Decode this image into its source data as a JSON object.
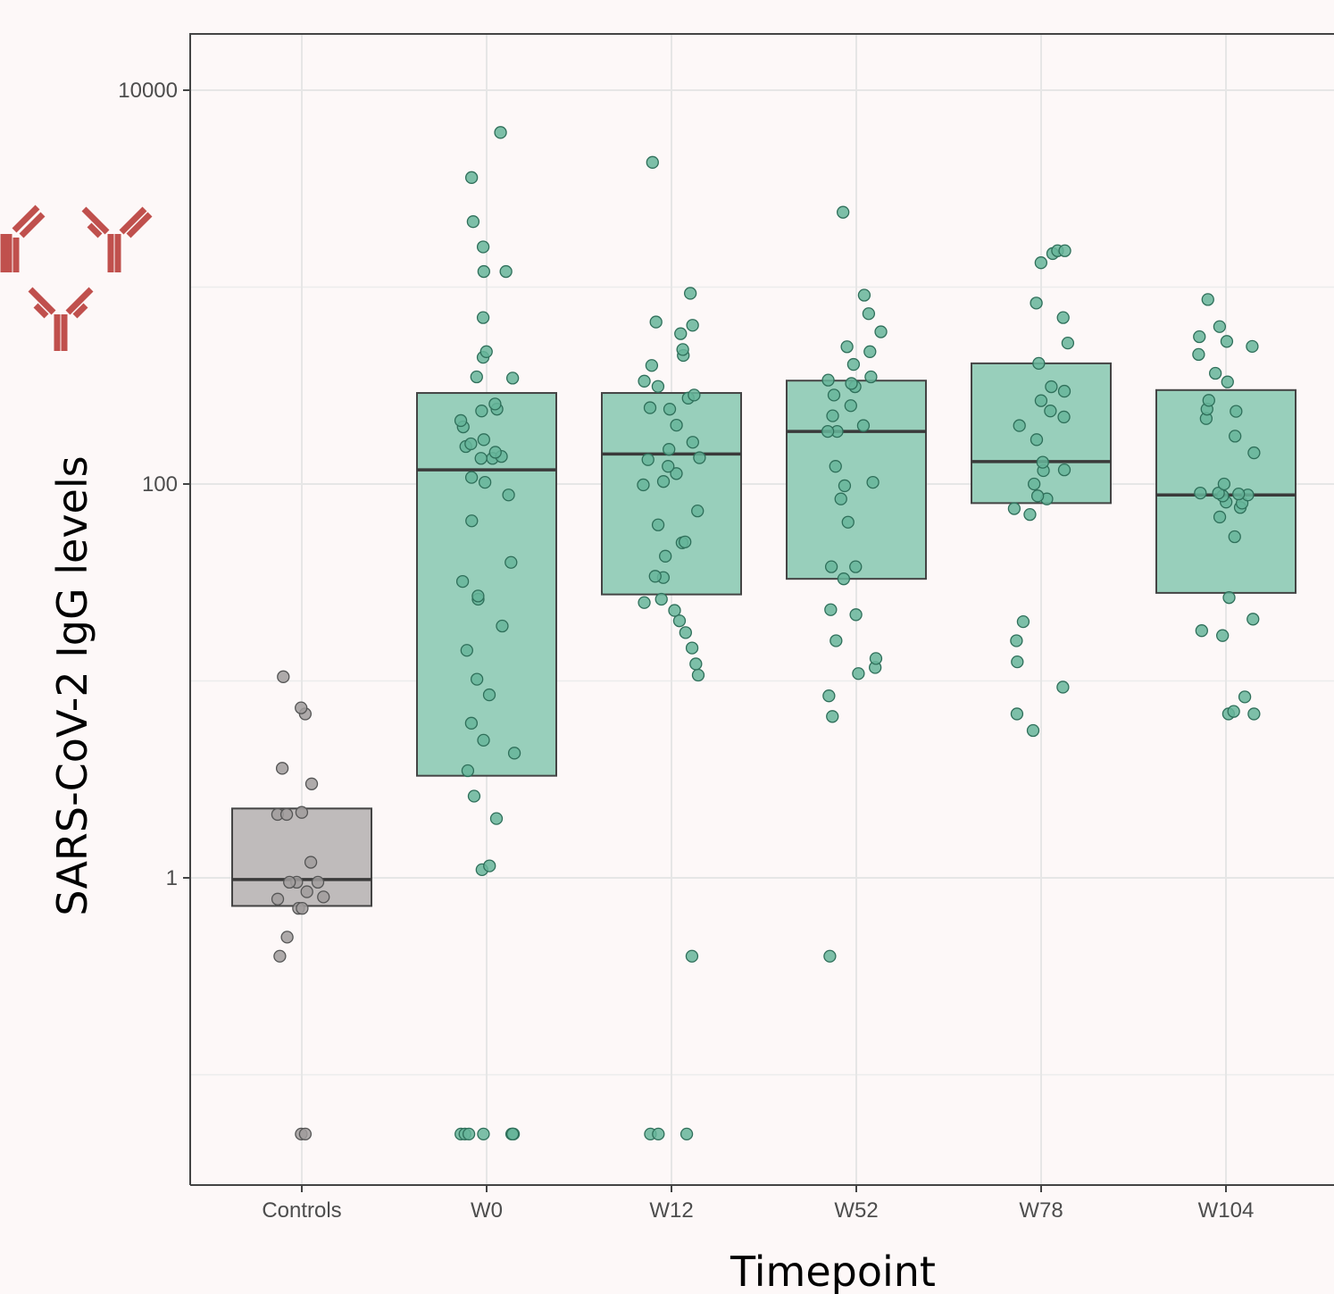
{
  "chart_data": {
    "type": "box",
    "xlabel": "Timepoint",
    "ylabel": "SARS-CoV-2 IgG levels",
    "yscale": "log10",
    "ylim": [
      0.02,
      16000
    ],
    "yticks": [
      1,
      100,
      10000
    ],
    "ytick_labels": [
      "1",
      "100",
      "10000"
    ],
    "yminor": [
      0.1,
      10,
      1000
    ],
    "grid": true,
    "legend": "none",
    "categories": [
      "Controls",
      "W0",
      "W12",
      "W52",
      "W78",
      "W104"
    ],
    "colors": {
      "Controls": "#bfbbbb",
      "default": "#98cfbb",
      "point_controls": "#a09c9c",
      "point": "#66b59a"
    },
    "boxes": [
      {
        "category": "Controls",
        "q1": 0.72,
        "median": 0.98,
        "q3": 2.25
      },
      {
        "category": "W0",
        "q1": 3.3,
        "median": 118,
        "q3": 290
      },
      {
        "category": "W12",
        "q1": 27.5,
        "median": 142,
        "q3": 290
      },
      {
        "category": "W52",
        "q1": 33,
        "median": 185,
        "q3": 335
      },
      {
        "category": "W78",
        "q1": 80,
        "median": 130,
        "q3": 410
      },
      {
        "category": "W104",
        "q1": 28,
        "median": 88,
        "q3": 300
      }
    ],
    "points": [
      {
        "category": "Controls",
        "values": [
          0.05,
          0.05,
          0.4,
          0.5,
          0.7,
          0.7,
          0.78,
          0.8,
          0.85,
          0.95,
          0.95,
          0.95,
          1.2,
          2.1,
          2.15,
          2.1,
          3.0,
          3.6,
          6.8,
          7.3,
          10.5
        ]
      },
      {
        "category": "W0",
        "values": [
          0.05,
          0.05,
          0.05,
          0.05,
          0.05,
          0.05,
          0.05,
          1.1,
          1.15,
          2.0,
          2.6,
          3.5,
          4.3,
          5.0,
          6.1,
          8.5,
          10.2,
          14.3,
          19,
          26,
          27,
          32,
          40,
          65,
          88,
          102,
          108,
          135,
          135,
          138,
          145,
          155,
          160,
          168,
          195,
          210,
          235,
          240,
          255,
          345,
          350,
          440,
          470,
          700,
          1200,
          1200,
          1600,
          2150,
          3600,
          6100
        ]
      },
      {
        "category": "W12",
        "values": [
          0.05,
          0.05,
          0.05,
          0.4,
          10.7,
          12.2,
          14.7,
          17.6,
          20.2,
          22.8,
          25.0,
          26.0,
          33.5,
          34.0,
          43.0,
          50.3,
          50.8,
          62.0,
          73.0,
          99.0,
          103.0,
          113.0,
          123.0,
          133.0,
          136.0,
          150.0,
          163.0,
          199.0,
          240.0,
          244.0,
          273.0,
          283.0,
          313.0,
          333.0,
          400.0,
          450.0,
          482.0,
          580.0,
          640.0,
          665.0,
          930.0,
          4300.0
        ]
      },
      {
        "category": "W52",
        "values": [
          0.4,
          6.6,
          8.4,
          10.9,
          11.7,
          13.0,
          16.0,
          21.7,
          23.0,
          33.0,
          38.0,
          38.0,
          64.0,
          84.0,
          98.0,
          102.0,
          123.0,
          185.0,
          185.0,
          198.0,
          222.0,
          250.0,
          283.0,
          312.0,
          324.0,
          337.0,
          350.0,
          405.0,
          470.0,
          498.0,
          593.0,
          733.0,
          910.0,
          2400.0
        ]
      },
      {
        "category": "W78",
        "values": [
          5.6,
          6.8,
          9.3,
          12.5,
          16.0,
          20.0,
          70.0,
          75.0,
          84.0,
          87.0,
          100.0,
          117.0,
          118.0,
          129.0,
          168.0,
          198.0,
          219.0,
          235.0,
          265.0,
          296.0,
          312.0,
          410.0,
          520.0,
          700.0,
          830.0,
          1330.0,
          1480.0,
          1530.0,
          1530.0
        ]
      },
      {
        "category": "W104",
        "values": [
          6.8,
          6.8,
          7.0,
          8.3,
          17.0,
          18.0,
          20.6,
          26.5,
          54.0,
          68.0,
          76.0,
          80.0,
          81.0,
          87.0,
          88.0,
          89.0,
          90.0,
          90.0,
          100.0,
          144.0,
          175.0,
          215.0,
          234.0,
          240.0,
          266.0,
          330.0,
          365.0,
          455.0,
          500.0,
          530.0,
          560.0,
          630.0,
          865.0
        ]
      }
    ]
  }
}
